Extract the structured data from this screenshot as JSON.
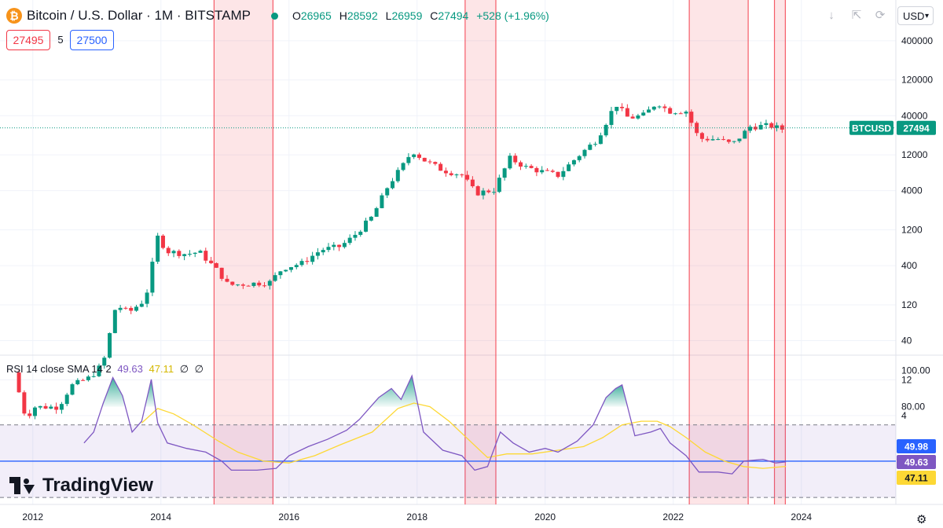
{
  "header": {
    "coin_glyph": "₿",
    "title": "Bitcoin / U.S. Dollar · 1M · BITSTAMP",
    "open_label": "O",
    "open": "26965",
    "high_label": "H",
    "high": "28592",
    "low_label": "L",
    "low": "26959",
    "close_label": "C",
    "close": "27494",
    "change": "+528 (+1.96%)",
    "bid": "27495",
    "spread": "5",
    "ask": "27500",
    "currency": "USD"
  },
  "toolbar": {
    "icons": [
      "download-icon",
      "fullscreen-icon",
      "snapshot-icon"
    ]
  },
  "price_tag": {
    "symbol": "BTCUSD",
    "value": "27494"
  },
  "rsi_legend": {
    "label": "RSI 14 close SMA 14 2",
    "rsi": "49.63",
    "sma": "47.11",
    "z1": "∅",
    "z2": "∅"
  },
  "rsi_tags": {
    "level": "49.98",
    "rsi": "49.63",
    "sma": "47.11"
  },
  "branding": {
    "logo_text": "TradingView"
  },
  "colors": {
    "up": "#089981",
    "down": "#f23645",
    "rsi": "#7e57c2",
    "sma": "#fdd835",
    "band": "#7e57c2",
    "shade": "#f23645",
    "blue": "#2962ff"
  },
  "chart_data": [
    {
      "type": "candlestick",
      "title": "Bitcoin / U.S. Dollar · 1M · BITSTAMP",
      "y_scale": "log",
      "ylim": [
        3,
        500000
      ],
      "xlim": [
        2011.5,
        2024.6
      ],
      "x_ticks": [
        2012,
        2014,
        2016,
        2018,
        2020,
        2022,
        2024
      ],
      "y_ticks": [
        4,
        12,
        40,
        120,
        400,
        1200,
        4000,
        12000,
        40000,
        120000,
        400000
      ],
      "last_price": 27494,
      "anchors": [
        [
          2011.7,
          15
        ],
        [
          2011.9,
          3.5
        ],
        [
          2012.0,
          5.2
        ],
        [
          2012.4,
          5.2
        ],
        [
          2012.6,
          10
        ],
        [
          2012.9,
          13
        ],
        [
          2013.1,
          20
        ],
        [
          2013.3,
          120
        ],
        [
          2013.5,
          95
        ],
        [
          2013.7,
          130
        ],
        [
          2013.83,
          220
        ],
        [
          2013.92,
          1050
        ],
        [
          2014.1,
          620
        ],
        [
          2014.4,
          570
        ],
        [
          2014.6,
          610
        ],
        [
          2014.9,
          330
        ],
        [
          2015.05,
          220
        ],
        [
          2015.4,
          230
        ],
        [
          2015.7,
          240
        ],
        [
          2015.9,
          370
        ],
        [
          2016.2,
          430
        ],
        [
          2016.5,
          650
        ],
        [
          2016.8,
          720
        ],
        [
          2017.0,
          970
        ],
        [
          2017.3,
          1800
        ],
        [
          2017.55,
          4700
        ],
        [
          2017.83,
          10000
        ],
        [
          2017.92,
          13800
        ],
        [
          2018.1,
          10300
        ],
        [
          2018.4,
          7500
        ],
        [
          2018.7,
          6500
        ],
        [
          2018.92,
          3700
        ],
        [
          2019.2,
          4100
        ],
        [
          2019.45,
          10800
        ],
        [
          2019.7,
          8200
        ],
        [
          2019.95,
          7200
        ],
        [
          2020.2,
          6400
        ],
        [
          2020.5,
          11300
        ],
        [
          2020.8,
          19000
        ],
        [
          2020.92,
          29000
        ],
        [
          2021.1,
          58000
        ],
        [
          2021.3,
          37000
        ],
        [
          2021.55,
          41000
        ],
        [
          2021.75,
          61000
        ],
        [
          2021.92,
          46000
        ],
        [
          2022.2,
          46000
        ],
        [
          2022.4,
          19800
        ],
        [
          2022.7,
          19500
        ],
        [
          2022.92,
          16500
        ],
        [
          2023.2,
          28500
        ],
        [
          2023.5,
          29500
        ],
        [
          2023.7,
          26500
        ],
        [
          2023.76,
          27494
        ]
      ]
    },
    {
      "type": "line",
      "title": "RSI 14 close SMA 14 2",
      "ylim": [
        30,
        100
      ],
      "y_ticks": [
        80,
        100
      ],
      "bands": [
        30,
        70
      ],
      "level_line": 49.98,
      "series": [
        {
          "name": "RSI",
          "points": [
            [
              2012.8,
              60
            ],
            [
              2012.95,
              66
            ],
            [
              2013.1,
              82
            ],
            [
              2013.25,
              96
            ],
            [
              2013.4,
              86
            ],
            [
              2013.55,
              66
            ],
            [
              2013.7,
              72
            ],
            [
              2013.85,
              95
            ],
            [
              2013.95,
              71
            ],
            [
              2014.1,
              60
            ],
            [
              2014.4,
              57
            ],
            [
              2014.7,
              55
            ],
            [
              2014.95,
              50
            ],
            [
              2015.1,
              45
            ],
            [
              2015.5,
              45
            ],
            [
              2015.8,
              46
            ],
            [
              2016.0,
              53
            ],
            [
              2016.3,
              58
            ],
            [
              2016.6,
              62
            ],
            [
              2016.9,
              67
            ],
            [
              2017.1,
              73
            ],
            [
              2017.4,
              85
            ],
            [
              2017.6,
              90
            ],
            [
              2017.75,
              84
            ],
            [
              2017.92,
              97
            ],
            [
              2018.1,
              66
            ],
            [
              2018.4,
              56
            ],
            [
              2018.7,
              53
            ],
            [
              2018.9,
              45
            ],
            [
              2019.1,
              47
            ],
            [
              2019.3,
              66
            ],
            [
              2019.5,
              60
            ],
            [
              2019.75,
              55
            ],
            [
              2020.0,
              57
            ],
            [
              2020.2,
              55
            ],
            [
              2020.5,
              61
            ],
            [
              2020.75,
              70
            ],
            [
              2020.95,
              85
            ],
            [
              2021.1,
              90
            ],
            [
              2021.2,
              92
            ],
            [
              2021.4,
              64
            ],
            [
              2021.65,
              66
            ],
            [
              2021.8,
              68
            ],
            [
              2021.95,
              60
            ],
            [
              2022.2,
              53
            ],
            [
              2022.4,
              44
            ],
            [
              2022.7,
              44
            ],
            [
              2022.92,
              43
            ],
            [
              2023.1,
              50
            ],
            [
              2023.4,
              51
            ],
            [
              2023.6,
              49
            ],
            [
              2023.76,
              49.63
            ]
          ]
        },
        {
          "name": "RSI-based MA",
          "points": [
            [
              2013.7,
              71
            ],
            [
              2013.95,
              79
            ],
            [
              2014.2,
              76
            ],
            [
              2014.5,
              70
            ],
            [
              2014.9,
              61
            ],
            [
              2015.2,
              55
            ],
            [
              2015.6,
              50
            ],
            [
              2016.0,
              49
            ],
            [
              2016.4,
              53
            ],
            [
              2016.8,
              59
            ],
            [
              2017.3,
              66
            ],
            [
              2017.7,
              79
            ],
            [
              2017.95,
              82
            ],
            [
              2018.2,
              80
            ],
            [
              2018.5,
              72
            ],
            [
              2018.8,
              62
            ],
            [
              2019.1,
              52
            ],
            [
              2019.4,
              54
            ],
            [
              2019.8,
              54
            ],
            [
              2020.2,
              56
            ],
            [
              2020.6,
              58
            ],
            [
              2020.9,
              63
            ],
            [
              2021.2,
              70
            ],
            [
              2021.5,
              72
            ],
            [
              2021.75,
              72
            ],
            [
              2021.95,
              69
            ],
            [
              2022.2,
              63
            ],
            [
              2022.5,
              55
            ],
            [
              2022.8,
              50
            ],
            [
              2023.1,
              47
            ],
            [
              2023.4,
              46
            ],
            [
              2023.76,
              47.11
            ]
          ]
        }
      ]
    }
  ],
  "highlight_periods": [
    [
      2014.83,
      2015.75
    ],
    [
      2018.75,
      2019.23
    ],
    [
      2022.25,
      2023.17
    ],
    [
      2023.58,
      2023.75
    ]
  ]
}
